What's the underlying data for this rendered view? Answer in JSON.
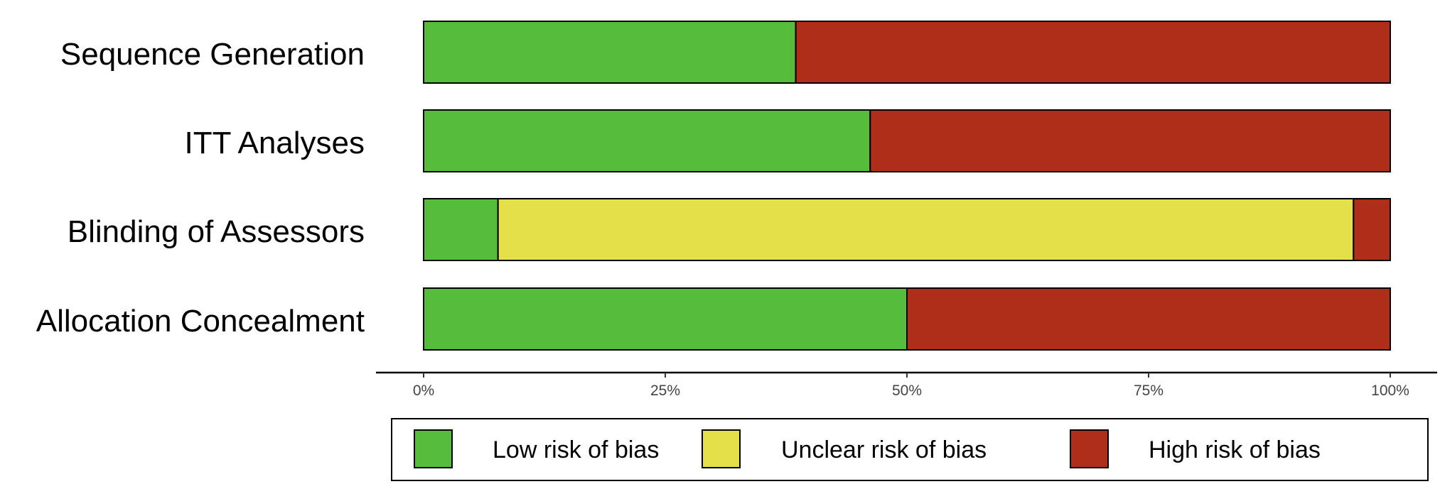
{
  "chart_data": {
    "type": "bar",
    "orientation": "horizontal",
    "stacked": true,
    "categories": [
      "Sequence Generation",
      "ITT Analyses",
      "Blinding of Assessors",
      "Allocation Concealment"
    ],
    "series": [
      {
        "name": "Low risk of bias",
        "color": "#56bd3c",
        "values": [
          38.5,
          46.2,
          7.7,
          50.0
        ]
      },
      {
        "name": "Unclear risk of bias",
        "color": "#e3e04a",
        "values": [
          0,
          0,
          88.5,
          0
        ]
      },
      {
        "name": "High risk of bias",
        "color": "#ae2e1a",
        "values": [
          61.5,
          53.8,
          3.8,
          50.0
        ]
      }
    ],
    "xticks": [
      "0%",
      "25%",
      "50%",
      "75%",
      "100%"
    ],
    "xlim": [
      0,
      100
    ],
    "legend_position": "bottom",
    "grid": false
  }
}
